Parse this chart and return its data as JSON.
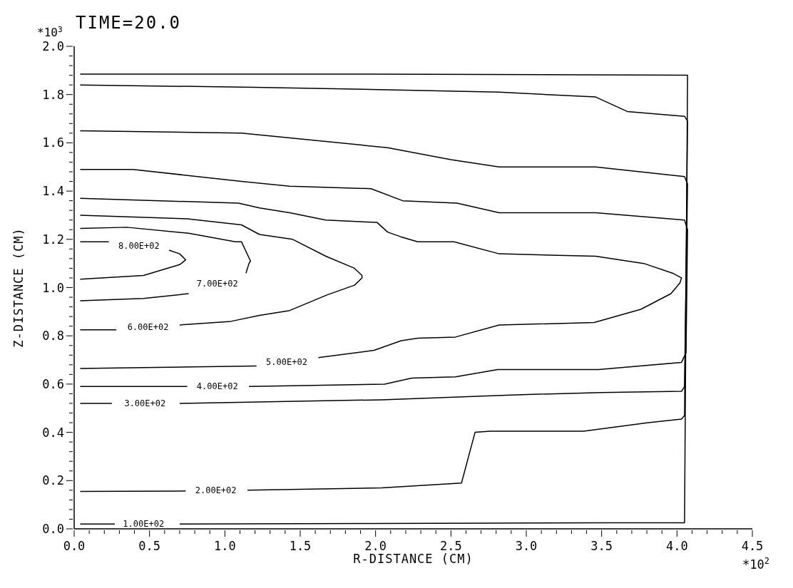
{
  "chart_data": {
    "type": "line",
    "title": "TIME=20.0",
    "xlabel": "R-DISTANCE (CM)",
    "ylabel": "Z-DISTANCE (CM)",
    "annotations": [
      "*10$^{3}$",
      "*10$^{2}$"
    ],
    "xlim": [
      0,
      4.5
    ],
    "ylim": [
      0,
      2.0
    ],
    "xticks": [
      {
        "value": 0,
        "label": "0.0"
      },
      {
        "value": 0.1,
        "label": null
      },
      {
        "value": 0.2,
        "label": null
      },
      {
        "value": 0.3,
        "label": null
      },
      {
        "value": 0.4,
        "label": null
      },
      {
        "value": 0.5,
        "label": "0.5"
      },
      {
        "value": 0.6,
        "label": null
      },
      {
        "value": 0.7,
        "label": null
      },
      {
        "value": 0.8,
        "label": null
      },
      {
        "value": 0.9,
        "label": null
      },
      {
        "value": 1.0,
        "label": "1.0"
      },
      {
        "value": 1.1,
        "label": null
      },
      {
        "value": 1.2,
        "label": null
      },
      {
        "value": 1.3,
        "label": null
      },
      {
        "value": 1.4,
        "label": null
      },
      {
        "value": 1.5,
        "label": "1.5"
      },
      {
        "value": 1.6,
        "label": null
      },
      {
        "value": 1.7,
        "label": null
      },
      {
        "value": 1.8,
        "label": null
      },
      {
        "value": 1.9,
        "label": null
      },
      {
        "value": 2.0,
        "label": "2.0"
      },
      {
        "value": 2.1,
        "label": null
      },
      {
        "value": 2.2,
        "label": null
      },
      {
        "value": 2.3,
        "label": null
      },
      {
        "value": 2.4,
        "label": null
      },
      {
        "value": 2.5,
        "label": "2.5"
      },
      {
        "value": 2.6,
        "label": null
      },
      {
        "value": 2.7,
        "label": null
      },
      {
        "value": 2.8,
        "label": null
      },
      {
        "value": 2.9,
        "label": null
      },
      {
        "value": 3.0,
        "label": "3.0"
      },
      {
        "value": 3.1,
        "label": null
      },
      {
        "value": 3.2,
        "label": null
      },
      {
        "value": 3.3,
        "label": null
      },
      {
        "value": 3.4,
        "label": null
      },
      {
        "value": 3.5,
        "label": "3.5"
      },
      {
        "value": 3.6,
        "label": null
      },
      {
        "value": 3.7,
        "label": null
      },
      {
        "value": 3.8,
        "label": null
      },
      {
        "value": 3.9,
        "label": null
      },
      {
        "value": 4.0,
        "label": "4.0"
      },
      {
        "value": 4.1,
        "label": null
      },
      {
        "value": 4.2,
        "label": null
      },
      {
        "value": 4.3,
        "label": null
      },
      {
        "value": 4.4,
        "label": null
      },
      {
        "value": 4.5,
        "label": "4.5"
      }
    ],
    "yticks": [
      {
        "value": 0,
        "label": "0.0"
      },
      {
        "value": 0.04,
        "label": null
      },
      {
        "value": 0.08,
        "label": null
      },
      {
        "value": 0.12,
        "label": null
      },
      {
        "value": 0.16,
        "label": null
      },
      {
        "value": 0.2,
        "label": "0.2"
      },
      {
        "value": 0.24,
        "label": null
      },
      {
        "value": 0.28,
        "label": null
      },
      {
        "value": 0.32,
        "label": null
      },
      {
        "value": 0.36,
        "label": null
      },
      {
        "value": 0.4,
        "label": "0.4"
      },
      {
        "value": 0.44,
        "label": null
      },
      {
        "value": 0.48,
        "label": null
      },
      {
        "value": 0.52,
        "label": null
      },
      {
        "value": 0.56,
        "label": null
      },
      {
        "value": 0.6,
        "label": "0.6"
      },
      {
        "value": 0.64,
        "label": null
      },
      {
        "value": 0.68,
        "label": null
      },
      {
        "value": 0.72,
        "label": null
      },
      {
        "value": 0.76,
        "label": null
      },
      {
        "value": 0.8,
        "label": "0.8"
      },
      {
        "value": 0.84,
        "label": null
      },
      {
        "value": 0.88,
        "label": null
      },
      {
        "value": 0.92,
        "label": null
      },
      {
        "value": 0.96,
        "label": null
      },
      {
        "value": 1.0,
        "label": "1.0"
      },
      {
        "value": 1.04,
        "label": null
      },
      {
        "value": 1.08,
        "label": null
      },
      {
        "value": 1.12,
        "label": null
      },
      {
        "value": 1.16,
        "label": null
      },
      {
        "value": 1.2,
        "label": "1.2"
      },
      {
        "value": 1.24,
        "label": null
      },
      {
        "value": 1.28,
        "label": null
      },
      {
        "value": 1.32,
        "label": null
      },
      {
        "value": 1.36,
        "label": null
      },
      {
        "value": 1.4,
        "label": "1.4"
      },
      {
        "value": 1.44,
        "label": null
      },
      {
        "value": 1.48,
        "label": null
      },
      {
        "value": 1.52,
        "label": null
      },
      {
        "value": 1.56,
        "label": null
      },
      {
        "value": 1.6,
        "label": "1.6"
      },
      {
        "value": 1.64,
        "label": null
      },
      {
        "value": 1.68,
        "label": null
      },
      {
        "value": 1.72,
        "label": null
      },
      {
        "value": 1.76,
        "label": null
      },
      {
        "value": 1.8,
        "label": "1.8"
      },
      {
        "value": 1.84,
        "label": null
      },
      {
        "value": 1.88,
        "label": null
      },
      {
        "value": 1.92,
        "label": null
      },
      {
        "value": 1.96,
        "label": null
      },
      {
        "value": 2.0,
        "label": "2.0"
      }
    ],
    "series": [
      {
        "name": "1.00E+02",
        "color": "#000000",
        "x": [
          0.04,
          0.27,
          0.46,
          0.7,
          2.0,
          3.5,
          4.05,
          4.07,
          2.0,
          0.04
        ],
        "values": [
          0.02,
          0.02,
          null,
          0.02,
          0.022,
          0.025,
          0.025,
          1.88,
          1.885,
          1.885
        ]
      },
      {
        "name": "2.00E+02",
        "color": "#000000",
        "x": [
          0.04,
          0.74,
          0.94,
          1.15,
          2.04,
          2.57,
          2.66,
          2.76,
          3.38,
          3.81,
          4.03,
          4.05,
          4.07,
          4.05,
          3.67,
          3.46,
          2.82,
          2.08,
          1.2,
          0.04
        ],
        "values": [
          0.155,
          0.157,
          null,
          0.16,
          0.17,
          0.19,
          0.4,
          0.405,
          0.405,
          0.44,
          0.455,
          0.47,
          1.69,
          1.71,
          1.73,
          1.79,
          1.81,
          1.82,
          1.83,
          1.84
        ]
      },
      {
        "name": "3.00E+02",
        "color": "#000000",
        "x": [
          0.04,
          0.25,
          0.47,
          0.7,
          2.04,
          2.9,
          3.5,
          4.03,
          4.05,
          4.07,
          4.05,
          3.46,
          2.82,
          2.5,
          2.08,
          1.11,
          0.04
        ],
        "values": [
          0.52,
          0.52,
          null,
          0.52,
          0.535,
          0.555,
          0.565,
          0.57,
          0.59,
          1.43,
          1.46,
          1.5,
          1.5,
          1.53,
          1.58,
          1.64,
          1.65
        ]
      },
      {
        "name": "4.00E+02",
        "color": "#000000",
        "x": [
          0.04,
          0.75,
          0.95,
          1.16,
          2.06,
          2.24,
          2.53,
          2.81,
          3.48,
          4.03,
          4.06,
          4.07,
          4.05,
          3.46,
          2.82,
          2.54,
          2.18,
          1.97,
          1.43,
          1.11,
          0.39,
          0.04
        ],
        "values": [
          0.59,
          0.59,
          null,
          0.59,
          0.6,
          0.625,
          0.63,
          0.66,
          0.66,
          0.69,
          0.73,
          1.24,
          1.28,
          1.31,
          1.31,
          1.35,
          1.36,
          1.41,
          1.42,
          1.44,
          1.49,
          1.49
        ]
      },
      {
        "name": "5.00E+02",
        "color": "#000000",
        "x": [
          0.04,
          1.21,
          1.41,
          1.62,
          1.99,
          2.17,
          2.28,
          2.53,
          2.82,
          3.45,
          3.76,
          3.96,
          4.02,
          4.03,
          3.97,
          3.78,
          3.46,
          2.82,
          2.52,
          2.28,
          2.17,
          2.08,
          2.01,
          1.67,
          1.43,
          1.23,
          1.09,
          0.04
        ],
        "values": [
          0.665,
          0.675,
          null,
          0.71,
          0.74,
          0.78,
          0.79,
          0.795,
          0.845,
          0.855,
          0.91,
          0.975,
          1.02,
          1.04,
          1.06,
          1.1,
          1.13,
          1.14,
          1.19,
          1.19,
          1.21,
          1.23,
          1.27,
          1.28,
          1.31,
          1.33,
          1.35,
          1.37
        ]
      },
      {
        "name": "6.00E+02",
        "color": "#000000",
        "x": [
          0.04,
          0.28,
          0.49,
          0.7,
          1.04,
          1.23,
          1.43,
          1.68,
          1.86,
          1.91,
          1.91,
          1.86,
          1.67,
          1.45,
          1.23,
          1.11,
          0.75,
          0.04
        ],
        "values": [
          0.825,
          0.825,
          null,
          0.845,
          0.86,
          0.885,
          0.905,
          0.97,
          1.01,
          1.04,
          1.05,
          1.08,
          1.13,
          1.2,
          1.22,
          1.26,
          1.285,
          1.3
        ]
      },
      {
        "name": "7.00E+02",
        "color": "#000000",
        "x": [
          0.04,
          0.46,
          0.76,
          0.95,
          1.14,
          1.16,
          1.17,
          1.11,
          1.07,
          0.76,
          0.35,
          0.04
        ],
        "values": [
          0.945,
          0.955,
          0.975,
          null,
          1.06,
          1.1,
          1.11,
          1.19,
          1.19,
          1.225,
          1.25,
          1.245
        ]
      },
      {
        "name": "8.00E+02",
        "color": "#000000",
        "x": [
          0.04,
          0.46,
          0.7,
          0.74,
          0.7,
          0.63,
          0.43,
          0.23,
          0.04
        ],
        "values": [
          1.035,
          1.05,
          1.095,
          1.115,
          1.14,
          1.155,
          null,
          1.19,
          1.19
        ]
      }
    ]
  }
}
